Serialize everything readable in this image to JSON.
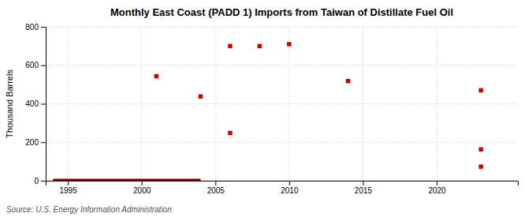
{
  "chart_data": {
    "type": "scatter",
    "title": "Monthly East Coast (PADD 1) Imports from Taiwan of Distillate Fuel Oil",
    "ylabel": "Thousand Barrels",
    "source": "Source: U.S. Energy Information Administration",
    "xlim": [
      1993.5,
      2025.5
    ],
    "xticks": [
      1995,
      2000,
      2005,
      2010,
      2015,
      2020
    ],
    "ylim": [
      0,
      800
    ],
    "yticks": [
      0,
      200,
      400,
      600,
      800
    ],
    "grid": true,
    "series": [
      {
        "type": "line",
        "color": "#8b0000",
        "line_style": "solid",
        "x": [
          1994,
          2004
        ],
        "values": [
          2,
          2
        ]
      },
      {
        "type": "scatter",
        "color": "#cc0000",
        "marker": "square",
        "x": [
          2001,
          2004,
          2006,
          2006,
          2008,
          2010,
          2014,
          2023,
          2023,
          2023
        ],
        "values": [
          543,
          438,
          700,
          248,
          700,
          710,
          518,
          470,
          163,
          73
        ]
      }
    ]
  }
}
